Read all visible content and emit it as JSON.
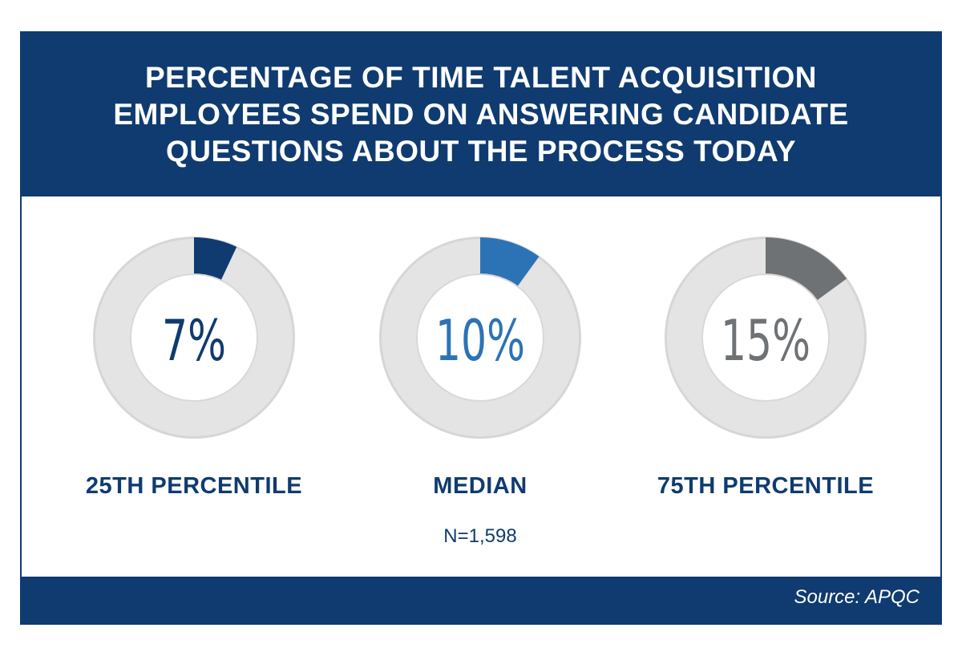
{
  "chart_data": {
    "type": "pie",
    "title_lines": [
      "PERCENTAGE OF TIME TALENT ACQUISITION",
      "EMPLOYEES SPEND ON ANSWERING CANDIDATE",
      "QUESTIONS ABOUT THE PROCESS TODAY"
    ],
    "unit": "%",
    "items": [
      {
        "label": "25TH PERCENTILE",
        "value": 7,
        "display": "7%",
        "color": "#0f3b70"
      },
      {
        "label": "MEDIAN",
        "value": 10,
        "display": "10%",
        "color": "#2c73b6"
      },
      {
        "label": "75TH PERCENTILE",
        "value": 15,
        "display": "15%",
        "color": "#6e7275"
      }
    ],
    "track_color": "#e4e4e4",
    "note": "N=1,598",
    "source": "Source: APQC"
  }
}
